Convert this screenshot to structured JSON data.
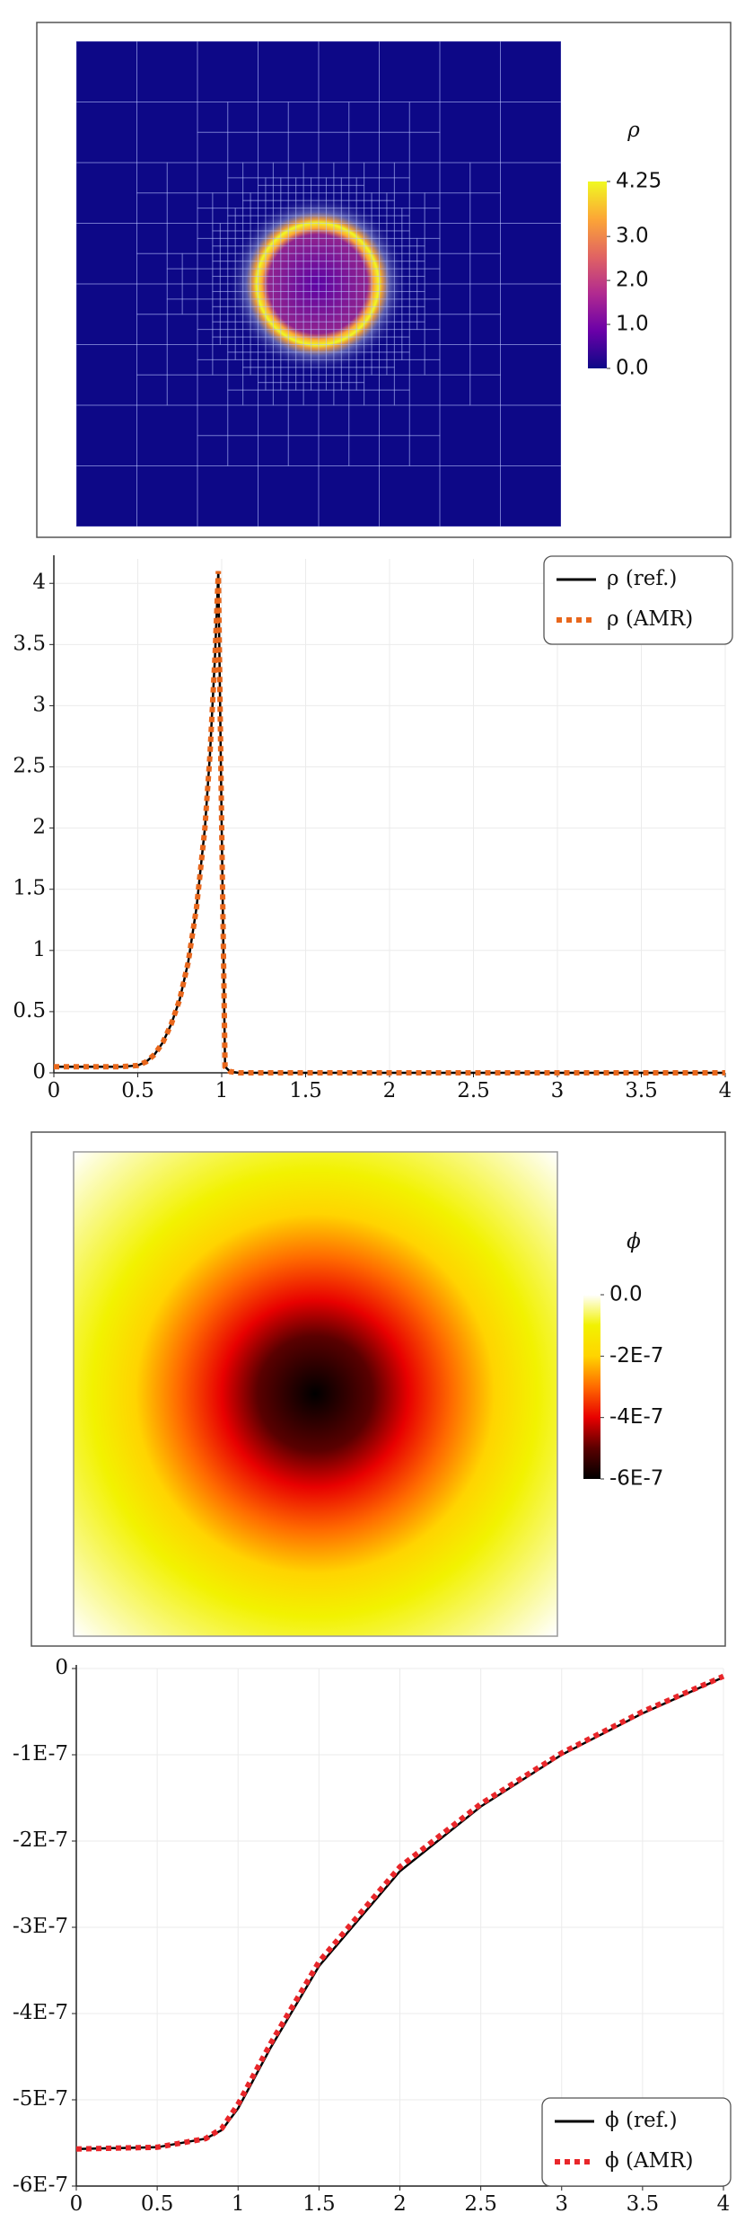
{
  "chart_data": [
    {
      "type": "heatmap",
      "colorbar": {
        "label": "ρ",
        "lim": [
          0,
          4.25
        ],
        "ticks": [
          {
            "value": 0,
            "label": "0.0"
          },
          {
            "value": 1,
            "label": "1.0"
          },
          {
            "value": 2,
            "label": "2.0"
          },
          {
            "value": 3,
            "label": "3.0"
          },
          4.25
        ]
      },
      "colormap": [
        "#0d0887",
        "#6a00a8",
        "#b12a90",
        "#e16462",
        "#fca636",
        "#f0f921"
      ]
    },
    {
      "type": "line",
      "x": [
        0,
        0.1,
        0.2,
        0.3,
        0.4,
        0.5,
        0.55,
        0.6,
        0.65,
        0.7,
        0.75,
        0.8,
        0.85,
        0.9,
        0.93,
        0.96,
        0.98,
        1.0,
        1.02,
        1.05,
        1.1,
        1.5,
        2,
        2.5,
        3,
        3.5,
        4
      ],
      "series": [
        {
          "name": "ρ (ref.)",
          "color": "#000000",
          "style": "solid",
          "values": [
            0.05,
            0.05,
            0.05,
            0.05,
            0.05,
            0.06,
            0.09,
            0.15,
            0.25,
            0.4,
            0.6,
            0.9,
            1.35,
            2.0,
            2.6,
            3.4,
            4.1,
            2.0,
            0.05,
            0.01,
            0,
            0,
            0,
            0,
            0,
            0,
            0
          ]
        },
        {
          "name": "ρ (AMR)",
          "color": "#e8671c",
          "style": "dotted",
          "values": [
            0.05,
            0.05,
            0.05,
            0.05,
            0.05,
            0.06,
            0.09,
            0.15,
            0.25,
            0.4,
            0.6,
            0.9,
            1.35,
            2.0,
            2.6,
            3.4,
            4.1,
            2.0,
            0.05,
            0.01,
            0,
            0,
            0,
            0,
            0,
            0,
            0
          ]
        }
      ],
      "xlim": [
        0,
        4
      ],
      "xticks": [
        0,
        0.5,
        1,
        1.5,
        2,
        2.5,
        3,
        3.5,
        4
      ],
      "ylim": [
        0,
        4.2
      ],
      "yticks": [
        0,
        0.5,
        1,
        1.5,
        2,
        2.5,
        3,
        3.5,
        4
      ],
      "grid": true,
      "legend": "upper right"
    },
    {
      "type": "heatmap",
      "colorbar": {
        "label": "ϕ",
        "lim": [
          -6e-07,
          0
        ],
        "ticks": [
          {
            "value": 0,
            "label": "0.0"
          },
          {
            "value": -2e-07,
            "label": "-2E-7"
          },
          {
            "value": -4e-07,
            "label": "-4E-7"
          },
          {
            "value": -6e-07,
            "label": "-6E-7"
          }
        ]
      },
      "colormap": [
        "#000000",
        "#5a0000",
        "#e80000",
        "#ff6a00",
        "#ffd400",
        "#f2f200",
        "#ffffff"
      ]
    },
    {
      "type": "line",
      "x": [
        0,
        0.5,
        0.8,
        0.9,
        1.0,
        1.1,
        1.2,
        1.5,
        2,
        2.5,
        3,
        3.5,
        4
      ],
      "series": [
        {
          "name": "ϕ (ref.)",
          "color": "#000000",
          "style": "solid",
          "values": [
            -5.57e-07,
            -5.55e-07,
            -5.45e-07,
            -5.35e-07,
            -5.1e-07,
            -4.75e-07,
            -4.4e-07,
            -3.45e-07,
            -2.35e-07,
            -1.6e-07,
            -1e-07,
            -5.2e-08,
            -1e-08
          ]
        },
        {
          "name": "ϕ (AMR)",
          "color": "#e8262a",
          "style": "dotted",
          "values": [
            -5.57e-07,
            -5.55e-07,
            -5.45e-07,
            -5.33e-07,
            -5.05e-07,
            -4.7e-07,
            -4.35e-07,
            -3.4e-07,
            -2.3e-07,
            -1.57e-07,
            -9.8e-08,
            -5e-08,
            -9e-09
          ]
        }
      ],
      "xlim": [
        0,
        4
      ],
      "xticks": [
        0,
        0.5,
        1,
        1.5,
        2,
        2.5,
        3,
        3.5,
        4
      ],
      "ylim": [
        -6e-07,
        0
      ],
      "yticks": [
        0,
        {
          "value": -1e-07,
          "label": "-1E-7"
        },
        {
          "value": -2e-07,
          "label": "-2E-7"
        },
        {
          "value": -3e-07,
          "label": "-3E-7"
        },
        {
          "value": -4e-07,
          "label": "-4E-7"
        },
        {
          "value": -5e-07,
          "label": "-5E-7"
        },
        {
          "value": -6e-07,
          "label": "-6E-7"
        }
      ],
      "grid": true,
      "legend": "lower right"
    }
  ]
}
